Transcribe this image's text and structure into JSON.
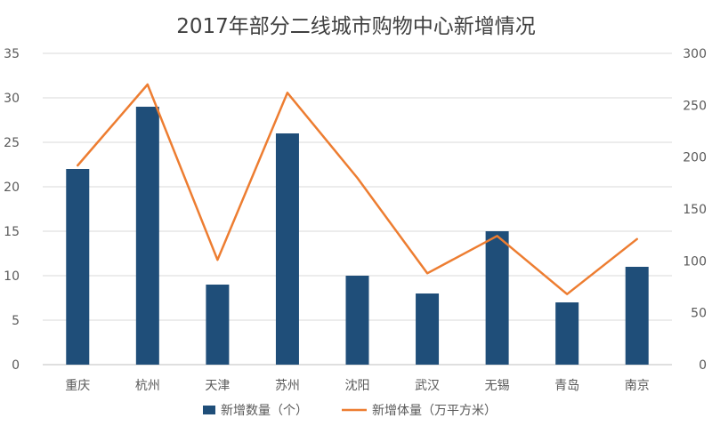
{
  "chart_data": {
    "type": "bar",
    "title": "2017年部分二线城市购物中心新增情况",
    "categories": [
      "重庆",
      "杭州",
      "天津",
      "苏州",
      "沈阳",
      "武汉",
      "无锡",
      "青岛",
      "南京"
    ],
    "series": [
      {
        "name": "新增数量（个）",
        "type": "bar",
        "axis": "left",
        "color": "#1f4e79",
        "values": [
          22,
          29,
          9,
          26,
          10,
          8,
          15,
          7,
          11
        ]
      },
      {
        "name": "新增体量（万平方米）",
        "type": "line",
        "axis": "right",
        "color": "#ed7d31",
        "values": [
          192,
          270,
          101,
          262,
          180,
          88,
          124,
          68,
          121
        ]
      }
    ],
    "y_left": {
      "min": 0,
      "max": 35,
      "step": 5,
      "ticks": [
        "0",
        "5",
        "10",
        "15",
        "20",
        "25",
        "30",
        "35"
      ]
    },
    "y_right": {
      "min": 0,
      "max": 300,
      "step": 50,
      "ticks": [
        "0",
        "50",
        "100",
        "150",
        "200",
        "250",
        "300"
      ]
    },
    "grid": true,
    "legend": "bottom"
  }
}
